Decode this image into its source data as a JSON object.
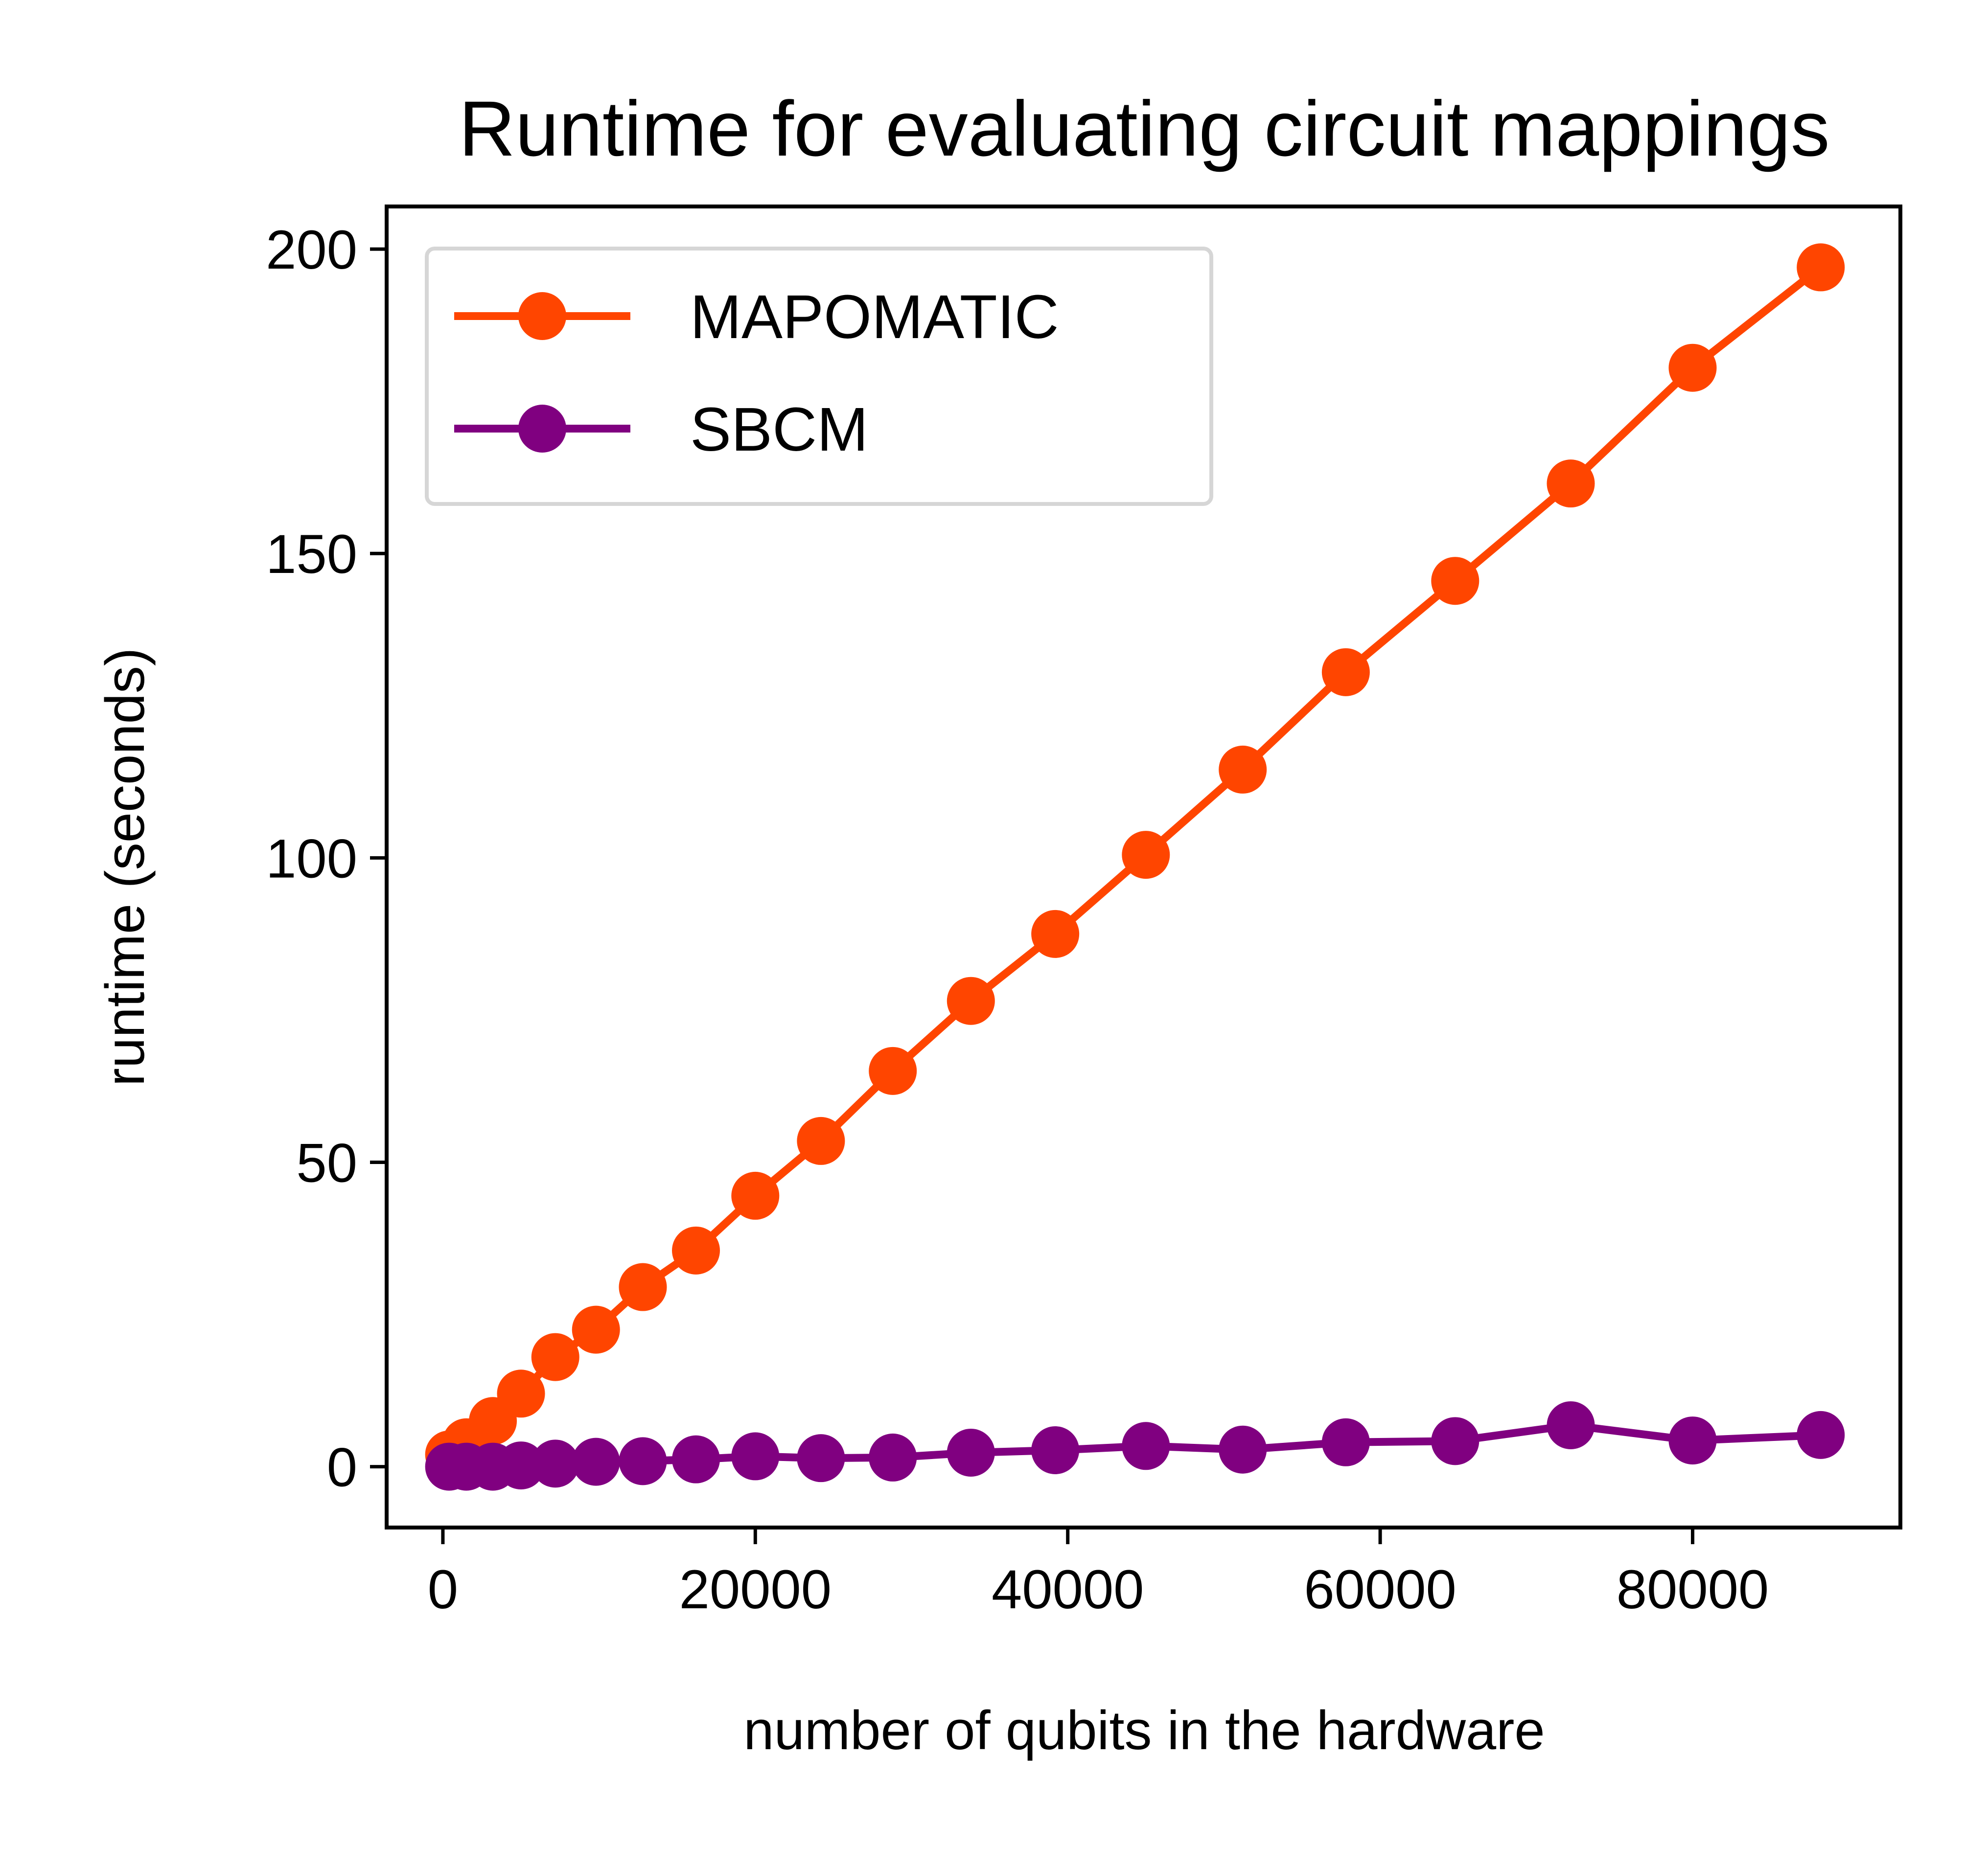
{
  "chart_data": {
    "type": "line",
    "title": "Runtime for evaluating circuit mappings",
    "xlabel": "number of qubits in the hardware",
    "ylabel": "runtime (seconds)",
    "xlim": [
      -3600,
      93300
    ],
    "ylim": [
      -10,
      207
    ],
    "xticks": [
      0,
      20000,
      40000,
      60000,
      80000
    ],
    "xtick_labels": [
      "0",
      "20000",
      "40000",
      "60000",
      "80000"
    ],
    "yticks": [
      0,
      50,
      100,
      150,
      200
    ],
    "ytick_labels": [
      "0",
      "50",
      "100",
      "150",
      "200"
    ],
    "grid": false,
    "legend_position": "upper-left",
    "series": [
      {
        "name": "MAPOMATIC",
        "color": "#ff4500",
        "marker": "circle",
        "x": [
          400,
          1500,
          3200,
          5000,
          7200,
          9800,
          12800,
          16200,
          20000,
          24200,
          28800,
          33800,
          39200,
          45000,
          51200,
          57800,
          64800,
          72200,
          80000,
          88200
        ],
        "y": [
          2,
          4,
          7.5,
          12,
          18,
          22.5,
          29.5,
          35.5,
          44.5,
          53.5,
          65,
          76.5,
          87.5,
          100.5,
          114.5,
          130.5,
          145.5,
          161.5,
          180.5,
          197
        ]
      },
      {
        "name": "SBCM",
        "color": "#800080",
        "marker": "circle",
        "x": [
          400,
          1500,
          3200,
          5000,
          7200,
          9800,
          12800,
          16200,
          20000,
          24200,
          28800,
          33800,
          39200,
          45000,
          51200,
          57800,
          64800,
          72200,
          80000,
          88200
        ],
        "y": [
          0,
          0,
          0,
          0.2,
          0.5,
          0.8,
          0.9,
          1.2,
          1.7,
          1.4,
          1.5,
          2.3,
          2.7,
          3.4,
          2.8,
          4,
          4.2,
          6.8,
          4.3,
          5.2
        ]
      }
    ]
  }
}
